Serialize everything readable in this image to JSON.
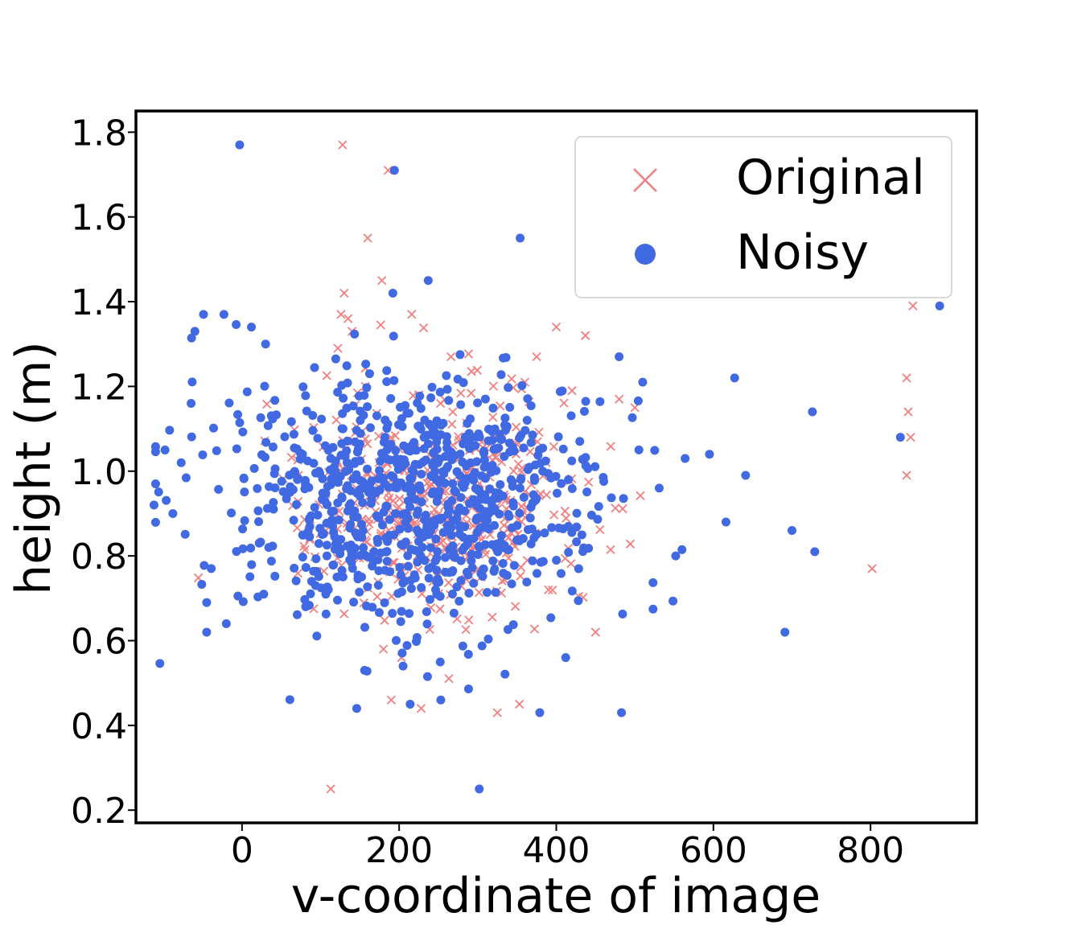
{
  "chart_data": {
    "type": "scatter",
    "title": "",
    "xlabel": "v-coordinate of image",
    "ylabel": "height (m)",
    "xlim": [
      -135,
      935
    ],
    "ylim": [
      0.17,
      1.85
    ],
    "xticks": [
      0,
      200,
      400,
      600,
      800
    ],
    "yticks": [
      0.2,
      0.4,
      0.6,
      0.8,
      1.0,
      1.2,
      1.4,
      1.6,
      1.8
    ],
    "xtick_labels": [
      "0",
      "200",
      "400",
      "600",
      "800"
    ],
    "ytick_labels": [
      "0.2",
      "0.4",
      "0.6",
      "0.8",
      "1.0",
      "1.2",
      "1.4",
      "1.6",
      "1.8"
    ],
    "grid": false,
    "legend": {
      "position": "top-right",
      "entries": [
        "Original",
        "Noisy"
      ]
    },
    "series": [
      {
        "name": "Original",
        "marker": "x",
        "color": "#f08080",
        "outliers": [
          [
            128,
            1.77
          ],
          [
            186,
            1.71
          ],
          [
            160,
            1.55
          ],
          [
            178,
            1.45
          ],
          [
            130,
            1.42
          ],
          [
            126,
            1.37
          ],
          [
            135,
            1.36
          ],
          [
            140,
            1.33
          ],
          [
            122,
            1.29
          ],
          [
            216,
            1.37
          ],
          [
            266,
            1.27
          ],
          [
            375,
            1.27
          ],
          [
            400,
            1.34
          ],
          [
            437,
            1.32
          ],
          [
            360,
            1.21
          ],
          [
            420,
            1.19
          ],
          [
            480,
            1.17
          ],
          [
            500,
            1.15
          ],
          [
            113,
            0.25
          ],
          [
            325,
            0.43
          ],
          [
            353,
            0.45
          ],
          [
            190,
            0.46
          ],
          [
            228,
            0.44
          ],
          [
            180,
            0.58
          ],
          [
            203,
            0.56
          ],
          [
            450,
            0.62
          ],
          [
            390,
            0.72
          ],
          [
            854,
            1.39
          ],
          [
            846,
            1.22
          ],
          [
            848,
            1.14
          ],
          [
            851,
            1.08
          ],
          [
            846,
            0.99
          ],
          [
            802,
            0.77
          ],
          [
            225,
            1.18
          ],
          [
            157,
            1.2
          ]
        ],
        "cluster": {
          "count": 430,
          "center": [
            250,
            0.92
          ],
          "spread": [
            85,
            0.13
          ],
          "seed": 7
        }
      },
      {
        "name": "Noisy",
        "marker": "o",
        "color": "#4169e1",
        "outliers": [
          [
            -3,
            1.77
          ],
          [
            194,
            1.71
          ],
          [
            354,
            1.55
          ],
          [
            237,
            1.45
          ],
          [
            192,
            1.42
          ],
          [
            -88,
            0.9
          ],
          [
            -112,
            0.92
          ],
          [
            -98,
            1.05
          ],
          [
            -60,
            1.33
          ],
          [
            -49,
            1.37
          ],
          [
            -23,
            1.37
          ],
          [
            12,
            1.34
          ],
          [
            30,
            1.3
          ],
          [
            627,
            1.22
          ],
          [
            726,
            1.14
          ],
          [
            838,
            1.08
          ],
          [
            888,
            1.39
          ],
          [
            564,
            1.03
          ],
          [
            595,
            1.04
          ],
          [
            641,
            0.99
          ],
          [
            616,
            0.88
          ],
          [
            700,
            0.86
          ],
          [
            729,
            0.81
          ],
          [
            691,
            0.62
          ],
          [
            483,
            0.43
          ],
          [
            379,
            0.43
          ],
          [
            302,
            0.25
          ],
          [
            146,
            0.44
          ],
          [
            214,
            0.45
          ],
          [
            253,
            0.46
          ],
          [
            -45,
            0.62
          ],
          [
            -45,
            0.69
          ],
          [
            -20,
            0.64
          ],
          [
            156,
            0.53
          ],
          [
            205,
            0.54
          ],
          [
            412,
            0.56
          ],
          [
            552,
            0.8
          ],
          [
            531,
            0.96
          ],
          [
            480,
            1.27
          ],
          [
            510,
            1.21
          ]
        ],
        "cluster": {
          "count": 860,
          "center": [
            215,
            0.93
          ],
          "spread": [
            120,
            0.145
          ],
          "seed": 13
        }
      }
    ]
  }
}
